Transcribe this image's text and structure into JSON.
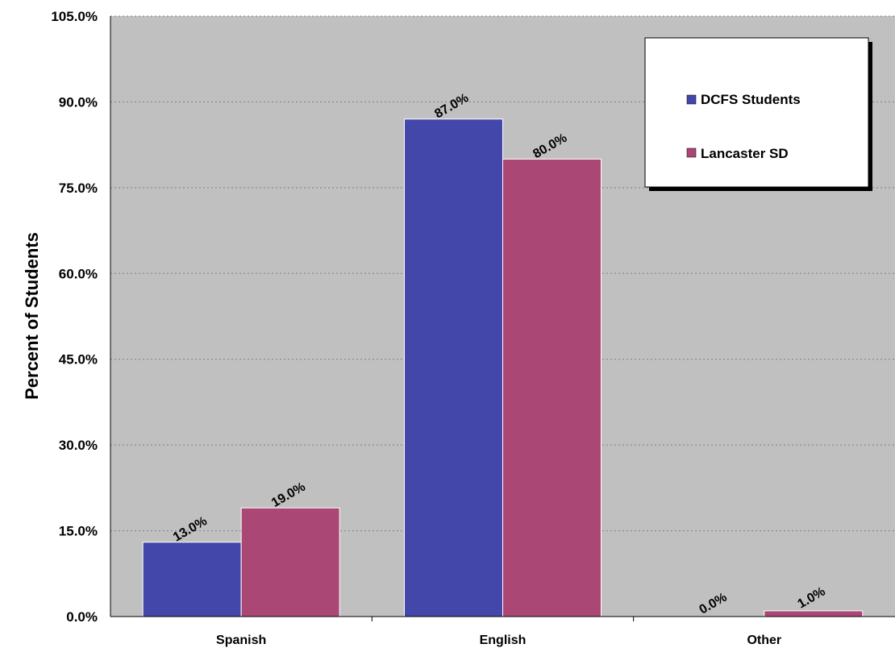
{
  "chart_data": {
    "type": "bar",
    "categories": [
      "Spanish",
      "English",
      "Other"
    ],
    "series": [
      {
        "name": "DCFS Students",
        "values": [
          13.0,
          87.0,
          0.0
        ],
        "labels": [
          "13.0%",
          "87.0%",
          "0.0%"
        ],
        "color": "#4347AA"
      },
      {
        "name": "Lancaster SD",
        "values": [
          19.0,
          80.0,
          1.0
        ],
        "labels": [
          "19.0%",
          "80.0%",
          "1.0%"
        ],
        "color": "#AA4775"
      }
    ],
    "ylabel": "Percent of Students",
    "xlabel": "",
    "ylim": [
      0,
      105
    ],
    "yticks": [
      0,
      15,
      30,
      45,
      60,
      75,
      90,
      105
    ],
    "ytick_labels": [
      "0.0%",
      "15.0%",
      "30.0%",
      "45.0%",
      "60.0%",
      "75.0%",
      "90.0%",
      "105.0%"
    ],
    "grid": true,
    "legend": "top-right",
    "plot_background": "#C0C0C0"
  }
}
